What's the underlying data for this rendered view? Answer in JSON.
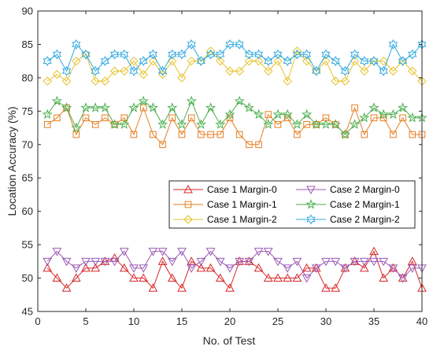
{
  "chart_data": {
    "type": "line",
    "xlabel": "No. of Test",
    "ylabel": "Location Accuracy (%)",
    "xlim": [
      0,
      40
    ],
    "ylim": [
      45,
      90
    ],
    "xticks": [
      0,
      5,
      10,
      15,
      20,
      25,
      30,
      35,
      40
    ],
    "yticks": [
      45,
      50,
      55,
      60,
      65,
      70,
      75,
      80,
      85,
      90
    ],
    "grid": false,
    "legend_position": "center-right",
    "x": [
      1,
      2,
      3,
      4,
      5,
      6,
      7,
      8,
      9,
      10,
      11,
      12,
      13,
      14,
      15,
      16,
      17,
      18,
      19,
      20,
      21,
      22,
      23,
      24,
      25,
      26,
      27,
      28,
      29,
      30,
      31,
      32,
      33,
      34,
      35,
      36,
      37,
      38,
      39,
      40
    ],
    "series": [
      {
        "name": "Case 1 Margin-0",
        "color": "#d62728",
        "marker": "triangle-up",
        "values": [
          51.5,
          50,
          48.5,
          50,
          51.5,
          51.5,
          52.5,
          53,
          51.5,
          50,
          50,
          48.5,
          52.5,
          50,
          48.5,
          52.5,
          51.5,
          51.5,
          50,
          48.5,
          52.5,
          52.5,
          51.5,
          50,
          50,
          50,
          50,
          51.5,
          51.5,
          48.5,
          48.5,
          51.5,
          52.5,
          51.5,
          54,
          50,
          51.5,
          50,
          52.5,
          48.5
        ]
      },
      {
        "name": "Case 1 Margin-1",
        "color": "#e67e22",
        "marker": "square",
        "values": [
          73,
          74,
          75.5,
          71.5,
          74,
          73,
          74,
          73,
          74,
          71.5,
          75.5,
          71.5,
          70,
          74,
          71.5,
          74,
          71.5,
          71.5,
          71.5,
          74,
          71.5,
          70,
          70,
          74.5,
          73,
          74,
          71.5,
          73,
          73,
          74,
          73,
          71.5,
          75.5,
          71.5,
          74,
          74,
          71.5,
          74,
          71.5,
          71.5
        ]
      },
      {
        "name": "Case 1 Margin-2",
        "color": "#e6c229",
        "marker": "diamond",
        "values": [
          79.5,
          80.5,
          79.5,
          82.5,
          83.5,
          79.5,
          79.5,
          81,
          81,
          82.5,
          80.5,
          82.5,
          80.5,
          82.5,
          80,
          82.5,
          82.5,
          84,
          82.5,
          81,
          81,
          82.5,
          82.5,
          81,
          82.5,
          79.5,
          84,
          82.5,
          81,
          82.5,
          79.5,
          79.5,
          82.5,
          81,
          82.5,
          82.5,
          81,
          82.5,
          81,
          79.5
        ]
      },
      {
        "name": "Case 2 Margin-0",
        "color": "#9b59b6",
        "marker": "triangle-down",
        "values": [
          52.5,
          54,
          52.5,
          51.5,
          52.5,
          52.5,
          52.5,
          52.5,
          54,
          51.5,
          51.5,
          54,
          54,
          52.5,
          54,
          51.5,
          52.5,
          54,
          52.5,
          51.5,
          52.5,
          52.5,
          54,
          54,
          52.5,
          51.5,
          52.5,
          50,
          51.5,
          52.5,
          52.5,
          51.5,
          52.5,
          52.5,
          52.5,
          52.5,
          51.5,
          50,
          51.5,
          51.5
        ]
      },
      {
        "name": "Case 2 Margin-1",
        "color": "#4caf50",
        "marker": "star",
        "values": [
          74.5,
          76.5,
          75.5,
          72.5,
          75.5,
          75.5,
          75.5,
          73,
          73,
          75.5,
          76.5,
          75.5,
          73,
          75.5,
          73,
          76.5,
          73,
          75.5,
          73,
          74.5,
          76.5,
          75.5,
          74.5,
          73,
          74.5,
          74.5,
          73,
          74.5,
          73,
          73,
          73,
          71.5,
          73,
          74,
          75.5,
          74.5,
          74.5,
          75.5,
          74,
          74
        ]
      },
      {
        "name": "Case 2 Margin-2",
        "color": "#2fa8e0",
        "marker": "hexagram",
        "values": [
          82.5,
          83.5,
          81,
          85,
          83.5,
          81,
          82.5,
          83.5,
          83.5,
          81,
          82.5,
          83.5,
          81,
          83.5,
          83.5,
          85,
          82.5,
          83.5,
          83.5,
          85,
          85,
          83.5,
          83.5,
          82.5,
          83.5,
          82.5,
          83.5,
          83.5,
          81,
          83.5,
          82.5,
          81,
          83.5,
          82.5,
          82.5,
          81,
          85,
          82.5,
          83.5,
          85
        ]
      }
    ]
  }
}
